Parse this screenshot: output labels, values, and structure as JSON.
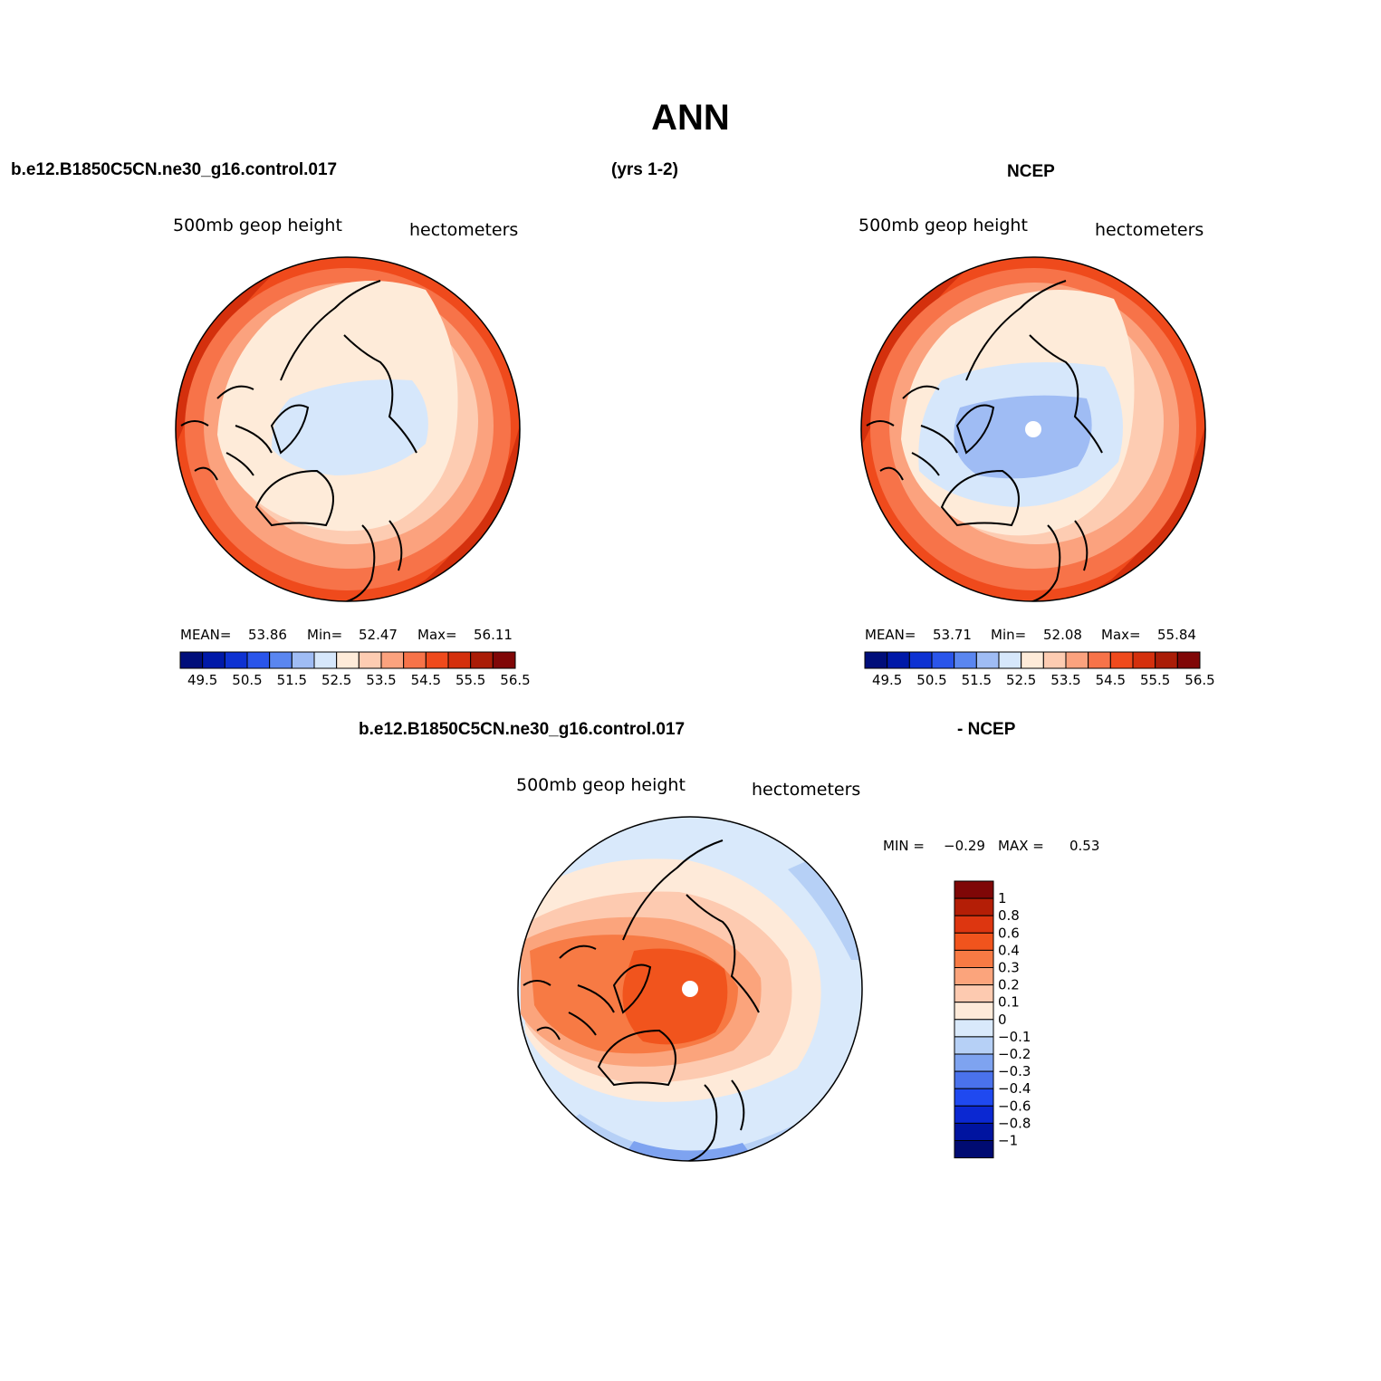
{
  "title": "ANN",
  "headers": {
    "top_left": "b.e12.B1850C5CN.ne30_g16.control.017",
    "top_center": "(yrs 1-2)",
    "top_right": "NCEP",
    "bottom_left": "b.e12.B1850C5CN.ne30_g16.control.017",
    "bottom_right": "- NCEP"
  },
  "panels": {
    "model": {
      "variable": "500mb geop height",
      "units": "hectometers",
      "stats": {
        "mean_label": "MEAN=",
        "mean": "53.86",
        "min_label": "Min=",
        "min": "52.47",
        "max_label": "Max=",
        "max": "56.11"
      }
    },
    "ncep": {
      "variable": "500mb geop height",
      "units": "hectometers",
      "stats": {
        "mean_label": "MEAN=",
        "mean": "53.71",
        "min_label": "Min=",
        "min": "52.08",
        "max_label": "Max=",
        "max": "55.84"
      }
    },
    "diff": {
      "variable": "500mb geop height",
      "units": "hectometers",
      "stats": {
        "min_label": "MIN =",
        "min": "−0.29",
        "max_label": "MAX =",
        "max": "0.53"
      }
    }
  },
  "colorbars": {
    "abs": {
      "colors": [
        "#000e7a",
        "#0019a8",
        "#0e32d2",
        "#2a55ea",
        "#5a86f0",
        "#9fbcf4",
        "#d6e7fb",
        "#feebd9",
        "#fdccb2",
        "#fba27e",
        "#f77349",
        "#ef4a1c",
        "#d4300d",
        "#aa1d07",
        "#800707"
      ],
      "tick_labels": [
        "49.5",
        "50.5",
        "51.5",
        "52.5",
        "53.5",
        "54.5",
        "55.5",
        "56.5"
      ]
    },
    "diff": {
      "colors_top_to_bottom": [
        "#7f0707",
        "#b41e06",
        "#dd3610",
        "#f1541d",
        "#f77a44",
        "#fba47c",
        "#fdcab0",
        "#feead9",
        "#d9e9fb",
        "#b6d0f6",
        "#7ea3f0",
        "#4a72ec",
        "#1f49f0",
        "#0b28d2",
        "#0014a0",
        "#000b72"
      ],
      "tick_labels": [
        "1",
        "0.8",
        "0.6",
        "0.4",
        "0.3",
        "0.2",
        "0.1",
        "0",
        "−0.1",
        "−0.2",
        "−0.3",
        "−0.4",
        "−0.6",
        "−0.8",
        "−1"
      ]
    }
  }
}
